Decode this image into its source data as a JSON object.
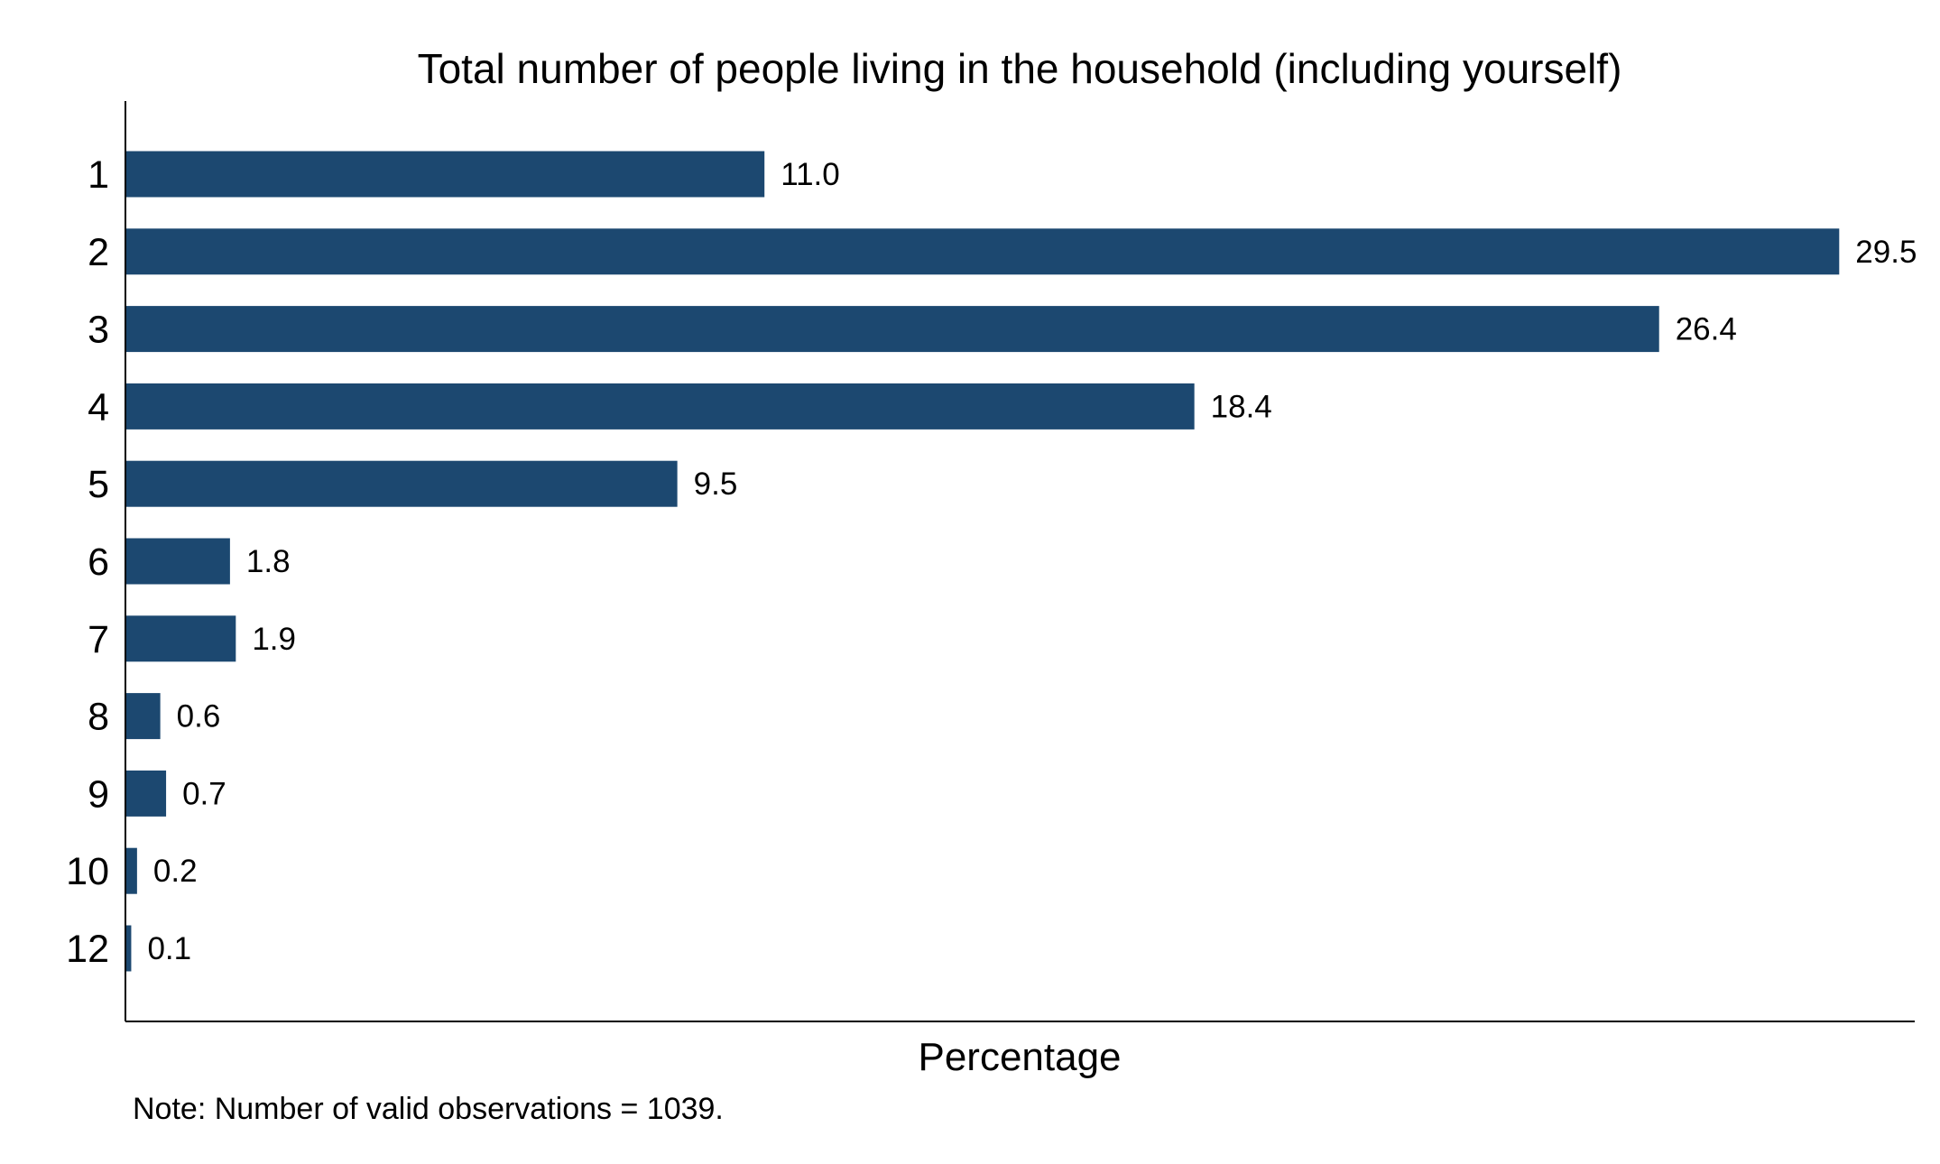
{
  "chart_data": {
    "type": "bar",
    "orientation": "horizontal",
    "title": "Total number of people living in the household (including yourself)",
    "xlabel": "Percentage",
    "ylabel": "",
    "categories": [
      "1",
      "2",
      "3",
      "4",
      "5",
      "6",
      "7",
      "8",
      "9",
      "10",
      "12"
    ],
    "values": [
      11.0,
      29.5,
      26.4,
      18.4,
      9.5,
      1.8,
      1.9,
      0.6,
      0.7,
      0.2,
      0.1
    ],
    "value_labels": [
      "11.0",
      "29.5",
      "26.4",
      "18.4",
      "9.5",
      "1.8",
      "1.9",
      "0.6",
      "0.7",
      "0.2",
      "0.1"
    ],
    "xlim": [
      0,
      30.8
    ],
    "grid": false,
    "legend": "none",
    "bar_color": "#1c4870",
    "note": "Note: Number of valid observations = 1039."
  }
}
